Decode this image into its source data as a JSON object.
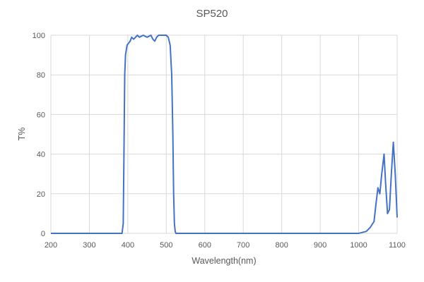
{
  "chart_data": {
    "type": "line",
    "title": "SP520",
    "xlabel": "Wavelength(nm)",
    "ylabel": "T%",
    "xlim": [
      200,
      1100
    ],
    "ylim": [
      0,
      100
    ],
    "xticks": [
      200,
      300,
      400,
      500,
      600,
      700,
      800,
      900,
      1000,
      1100
    ],
    "yticks": [
      0,
      20,
      40,
      60,
      80,
      100
    ],
    "grid": true,
    "legend": null,
    "series": [
      {
        "name": "SP520",
        "color": "#4472c4",
        "x": [
          200,
          300,
          385,
          388,
          390,
          392,
          394,
          398,
          402,
          406,
          410,
          415,
          420,
          425,
          430,
          440,
          450,
          460,
          465,
          470,
          475,
          480,
          490,
          500,
          505,
          510,
          514,
          517,
          519,
          521,
          523,
          525,
          530,
          600,
          700,
          800,
          900,
          1000,
          1020,
          1030,
          1040,
          1045,
          1050,
          1055,
          1060,
          1066,
          1070,
          1075,
          1080,
          1085,
          1090,
          1095,
          1100
        ],
        "y": [
          0,
          0,
          0,
          5,
          40,
          80,
          90,
          95,
          96,
          97,
          99,
          98,
          99,
          100,
          99,
          100,
          99,
          100,
          98,
          97,
          99,
          100,
          100,
          100,
          99,
          95,
          80,
          50,
          20,
          5,
          1,
          0,
          0,
          0,
          0,
          0,
          0,
          0,
          1,
          3,
          6,
          15,
          23,
          20,
          30,
          40,
          25,
          10,
          12,
          30,
          46,
          30,
          8
        ]
      }
    ]
  }
}
